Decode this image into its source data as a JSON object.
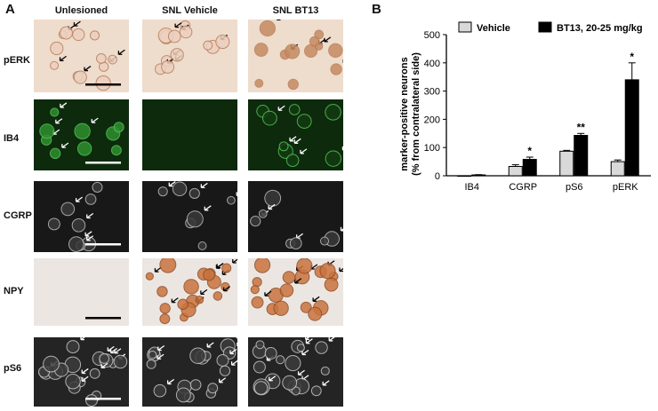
{
  "panel_a": {
    "letter": "A",
    "columns": [
      "Unlesioned",
      "SNL Vehicle",
      "SNL BT13"
    ],
    "rows": [
      "pERK",
      "IB4",
      "CGRP",
      "NPY",
      "pS6"
    ],
    "stain_colors": {
      "pERK": "#eedccc",
      "IB4": "#0d2a0d",
      "CGRP": "#181818",
      "NPY": "#ece6e2",
      "pS6": "#242424"
    }
  },
  "panel_b": {
    "letter": "B"
  },
  "chart_data": {
    "type": "bar",
    "categories": [
      "IB4",
      "CGRP",
      "pS6",
      "pERK"
    ],
    "series": [
      {
        "name": "Vehicle",
        "color": "#d9d9d9",
        "values": [
          0,
          33,
          87,
          50
        ],
        "errors": [
          0,
          6,
          3,
          6
        ],
        "significance": [
          "",
          "",
          "",
          ""
        ]
      },
      {
        "name": "BT13, 20-25 mg/kg",
        "color": "#000000",
        "values": [
          3,
          58,
          143,
          340
        ],
        "errors": [
          1,
          8,
          7,
          60
        ],
        "significance": [
          "",
          "*",
          "**",
          "*"
        ]
      }
    ],
    "ylabel": [
      "marker-positive neurons",
      "(% from contralateral side)"
    ],
    "ylim": [
      0,
      500
    ],
    "yticks": [
      0,
      100,
      200,
      300,
      400,
      500
    ],
    "legend_position": "top"
  }
}
